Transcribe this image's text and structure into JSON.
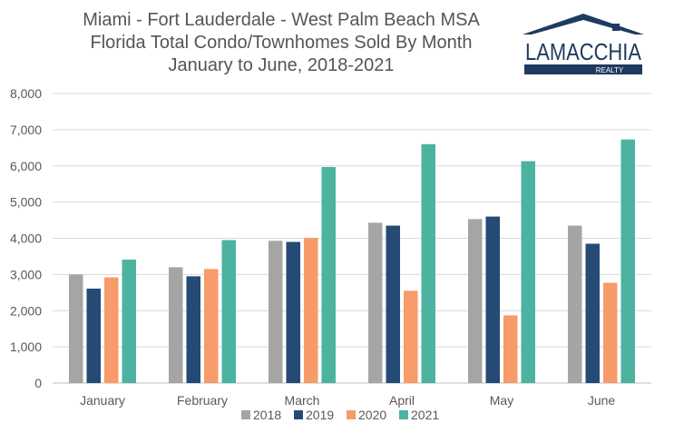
{
  "logo": {
    "brand": "LAMACCHIA",
    "tagline": "REALTY",
    "colors": {
      "navy": "#1f3a5f"
    }
  },
  "chart_data": {
    "type": "bar",
    "title": [
      "Miami - Fort Lauderdale - West Palm Beach MSA",
      "Florida Total Condo/Townhomes Sold By Month",
      "January to June, 2018-2021"
    ],
    "categories": [
      "January",
      "February",
      "March",
      "April",
      "May",
      "June"
    ],
    "series": [
      {
        "name": "2018",
        "color": "#a5a5a5",
        "values": [
          3000,
          3200,
          3930,
          4430,
          4530,
          4350
        ]
      },
      {
        "name": "2019",
        "color": "#254a75",
        "values": [
          2610,
          2950,
          3900,
          4350,
          4600,
          3850
        ]
      },
      {
        "name": "2020",
        "color": "#f79b6a",
        "values": [
          2920,
          3150,
          4010,
          2550,
          1870,
          2770
        ]
      },
      {
        "name": "2021",
        "color": "#4bb3a0",
        "values": [
          3410,
          3950,
          5970,
          6600,
          6130,
          6730
        ]
      }
    ],
    "y_ticks": [
      "0",
      "1,000",
      "2,000",
      "3,000",
      "4,000",
      "5,000",
      "6,000",
      "7,000",
      "8,000"
    ],
    "ylim": [
      0,
      8000
    ],
    "grid": true,
    "legend": "bottom",
    "xlabel": "",
    "ylabel": ""
  }
}
